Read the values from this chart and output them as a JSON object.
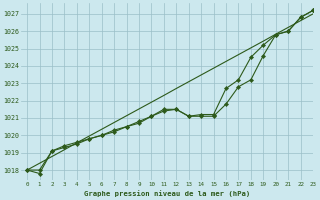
{
  "title": "Graphe pression niveau de la mer (hPa)",
  "bg_color": "#cce8ee",
  "grid_color": "#9bbfc8",
  "line_color": "#2d5a1b",
  "marker_color": "#2d5a1b",
  "xlim": [
    -0.5,
    23
  ],
  "ylim": [
    1017.4,
    1027.6
  ],
  "yticks": [
    1018,
    1019,
    1020,
    1021,
    1022,
    1023,
    1024,
    1025,
    1026,
    1027
  ],
  "xticks": [
    0,
    1,
    2,
    3,
    4,
    5,
    6,
    7,
    8,
    9,
    10,
    11,
    12,
    13,
    14,
    15,
    16,
    17,
    18,
    19,
    20,
    21,
    22,
    23
  ],
  "hours": [
    0,
    1,
    2,
    3,
    4,
    5,
    6,
    7,
    8,
    9,
    10,
    11,
    12,
    13,
    14,
    15,
    16,
    17,
    18,
    19,
    20,
    21,
    22,
    23
  ],
  "line_straight": [
    1018.0,
    1018.39,
    1018.78,
    1019.17,
    1019.57,
    1019.96,
    1020.35,
    1020.74,
    1021.13,
    1021.52,
    1021.91,
    1022.3,
    1022.7,
    1023.09,
    1023.48,
    1023.87,
    1024.26,
    1024.65,
    1025.04,
    1025.43,
    1025.83,
    1026.22,
    1026.61,
    1027.0
  ],
  "line_main": [
    1018.0,
    1017.8,
    1019.1,
    1019.4,
    1019.6,
    1019.8,
    1020.0,
    1020.2,
    1020.5,
    1020.8,
    1021.1,
    1021.5,
    1021.5,
    1021.1,
    1021.1,
    1021.1,
    1021.8,
    1022.8,
    1023.2,
    1024.6,
    1025.8,
    1026.0,
    1026.8,
    1027.2
  ],
  "line_upper": [
    1018.0,
    1018.0,
    1019.1,
    1019.3,
    1019.5,
    1019.8,
    1020.0,
    1020.3,
    1020.5,
    1020.7,
    1021.1,
    1021.4,
    1021.5,
    1021.1,
    1021.2,
    1021.2,
    1022.7,
    1023.2,
    1024.5,
    1025.2,
    1025.8,
    1026.0,
    1026.8,
    1027.2
  ]
}
